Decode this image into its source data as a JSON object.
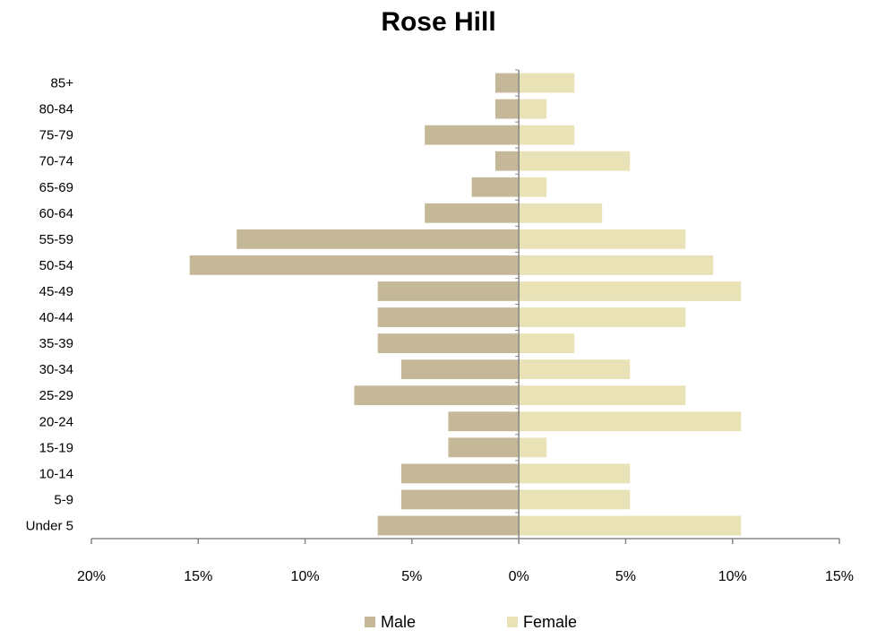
{
  "chart_data": {
    "type": "bar",
    "orientation": "horizontal",
    "title": "Rose Hill",
    "categories": [
      "Under 5",
      "5-9",
      "10-14",
      "15-19",
      "20-24",
      "25-29",
      "30-34",
      "35-39",
      "40-44",
      "45-49",
      "50-54",
      "55-59",
      "60-64",
      "65-69",
      "70-74",
      "75-79",
      "80-84",
      "85+"
    ],
    "series": [
      {
        "name": "Male",
        "color": "#c4b898",
        "values": [
          6.6,
          5.5,
          5.5,
          3.3,
          3.3,
          7.7,
          5.5,
          6.6,
          6.6,
          6.6,
          15.4,
          13.2,
          4.4,
          2.2,
          1.1,
          4.4,
          1.1,
          1.1
        ]
      },
      {
        "name": "Female",
        "color": "#e9e2b7",
        "values": [
          10.4,
          5.2,
          5.2,
          1.3,
          10.4,
          7.8,
          5.2,
          2.6,
          7.8,
          10.4,
          9.1,
          7.8,
          3.9,
          1.3,
          5.2,
          2.6,
          1.3,
          2.6
        ]
      }
    ],
    "xlim": [
      -20,
      15
    ],
    "xticks": [
      -20,
      -15,
      -10,
      -5,
      0,
      5,
      10,
      15
    ],
    "xtick_labels": [
      "20%",
      "15%",
      "10%",
      "5%",
      "0%",
      "5%",
      "10%",
      "15%"
    ],
    "legend_position": "bottom",
    "grid": false
  }
}
